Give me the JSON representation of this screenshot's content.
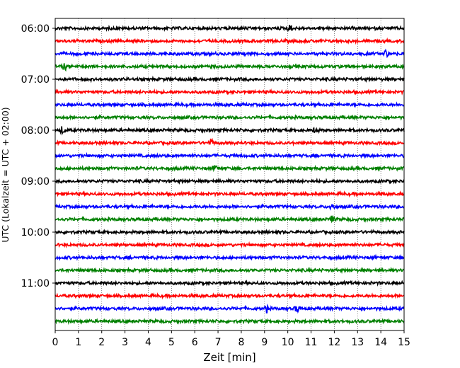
{
  "chart_data": {
    "type": "line",
    "title": "",
    "xlabel": "Zeit  [min]",
    "ylabel": "UTC (Lokalzeit = UTC + 02:00)",
    "xlim": [
      0,
      15
    ],
    "x_ticks": [
      "0",
      "1",
      "2",
      "3",
      "4",
      "5",
      "6",
      "7",
      "8",
      "9",
      "10",
      "11",
      "12",
      "13",
      "14",
      "15"
    ],
    "y_ticks": [
      "06:00",
      "07:00",
      "08:00",
      "09:00",
      "10:00",
      "11:00"
    ],
    "grid": "vertical dotted",
    "trace_interval_min": 15,
    "colors": [
      "#000000",
      "#ff0000",
      "#0000ff",
      "#008000"
    ],
    "traces": [
      {
        "start": "06:00",
        "color": "#000000",
        "events": [
          10.1
        ]
      },
      {
        "start": "06:15",
        "color": "#ff0000",
        "events": []
      },
      {
        "start": "06:30",
        "color": "#0000ff",
        "events": [
          14.2
        ]
      },
      {
        "start": "06:45",
        "color": "#008000",
        "events": [
          0.4
        ]
      },
      {
        "start": "07:00",
        "color": "#000000",
        "events": []
      },
      {
        "start": "07:15",
        "color": "#ff0000",
        "events": []
      },
      {
        "start": "07:30",
        "color": "#0000ff",
        "events": []
      },
      {
        "start": "07:45",
        "color": "#008000",
        "events": []
      },
      {
        "start": "08:00",
        "color": "#000000",
        "events": [
          0.3,
          11.2
        ]
      },
      {
        "start": "08:15",
        "color": "#ff0000",
        "events": [
          6.7
        ]
      },
      {
        "start": "08:30",
        "color": "#0000ff",
        "events": []
      },
      {
        "start": "08:45",
        "color": "#008000",
        "events": [
          6.9
        ]
      },
      {
        "start": "09:00",
        "color": "#000000",
        "events": []
      },
      {
        "start": "09:15",
        "color": "#ff0000",
        "events": []
      },
      {
        "start": "09:30",
        "color": "#0000ff",
        "events": [
          11.9
        ]
      },
      {
        "start": "09:45",
        "color": "#008000",
        "events": [
          11.9
        ]
      },
      {
        "start": "10:00",
        "color": "#000000",
        "events": []
      },
      {
        "start": "10:15",
        "color": "#ff0000",
        "events": []
      },
      {
        "start": "10:30",
        "color": "#0000ff",
        "events": []
      },
      {
        "start": "10:45",
        "color": "#008000",
        "events": []
      },
      {
        "start": "11:00",
        "color": "#000000",
        "events": []
      },
      {
        "start": "11:15",
        "color": "#ff0000",
        "events": []
      },
      {
        "start": "11:30",
        "color": "#0000ff",
        "events": [
          9.1,
          10.4
        ]
      },
      {
        "start": "11:45",
        "color": "#008000",
        "events": []
      }
    ]
  }
}
